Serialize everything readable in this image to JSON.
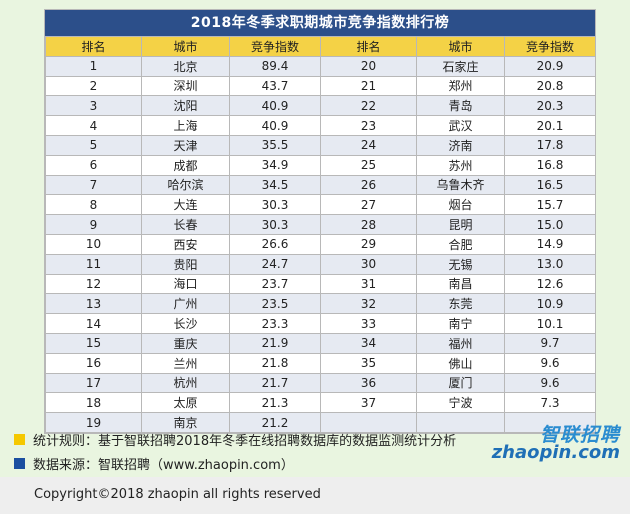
{
  "title": "2018年冬季求职期城市竞争指数排行榜",
  "headers": [
    "排名",
    "城市",
    "竞争指数",
    "排名",
    "城市",
    "竞争指数"
  ],
  "left_rows": [
    [
      "1",
      "北京",
      "89.4"
    ],
    [
      "2",
      "深圳",
      "43.7"
    ],
    [
      "3",
      "沈阳",
      "40.9"
    ],
    [
      "4",
      "上海",
      "40.9"
    ],
    [
      "5",
      "天津",
      "35.5"
    ],
    [
      "6",
      "成都",
      "34.9"
    ],
    [
      "7",
      "哈尔滨",
      "34.5"
    ],
    [
      "8",
      "大连",
      "30.3"
    ],
    [
      "9",
      "长春",
      "30.3"
    ],
    [
      "10",
      "西安",
      "26.6"
    ],
    [
      "11",
      "贵阳",
      "24.7"
    ],
    [
      "12",
      "海口",
      "23.7"
    ],
    [
      "13",
      "广州",
      "23.5"
    ],
    [
      "14",
      "长沙",
      "23.3"
    ],
    [
      "15",
      "重庆",
      "21.9"
    ],
    [
      "16",
      "兰州",
      "21.8"
    ],
    [
      "17",
      "杭州",
      "21.7"
    ],
    [
      "18",
      "太原",
      "21.3"
    ],
    [
      "19",
      "南京",
      "21.2"
    ]
  ],
  "right_rows": [
    [
      "20",
      "石家庄",
      "20.9"
    ],
    [
      "21",
      "郑州",
      "20.8"
    ],
    [
      "22",
      "青岛",
      "20.3"
    ],
    [
      "23",
      "武汉",
      "20.1"
    ],
    [
      "24",
      "济南",
      "17.8"
    ],
    [
      "25",
      "苏州",
      "16.8"
    ],
    [
      "26",
      "乌鲁木齐",
      "16.5"
    ],
    [
      "27",
      "烟台",
      "15.7"
    ],
    [
      "28",
      "昆明",
      "15.0"
    ],
    [
      "29",
      "合肥",
      "14.9"
    ],
    [
      "30",
      "无锡",
      "13.0"
    ],
    [
      "31",
      "南昌",
      "12.6"
    ],
    [
      "32",
      "东莞",
      "10.9"
    ],
    [
      "33",
      "南宁",
      "10.1"
    ],
    [
      "34",
      "福州",
      "9.7"
    ],
    [
      "35",
      "佛山",
      "9.6"
    ],
    [
      "36",
      "厦门",
      "9.6"
    ],
    [
      "37",
      "宁波",
      "7.3"
    ],
    [
      "",
      "",
      ""
    ]
  ],
  "legend": [
    {
      "text": "统计规则：基于智联招聘2018年冬季在线招聘数据库的数据监测统计分析",
      "color": "#f5c800"
    },
    {
      "text": "数据来源：智联招聘（www.zhaopin.com）",
      "color": "#1b4fa0"
    }
  ],
  "copyright": "Copyright©2018 zhaopin all rights reserved",
  "logo": {
    "cn": "智联招聘",
    "en": "zhaopin.com"
  },
  "colors": {
    "title_bg": "#2c4f8a",
    "header_bg": "#f4d246",
    "stripe": "#e6eaf2",
    "page_bg": "#e9f5e0"
  }
}
